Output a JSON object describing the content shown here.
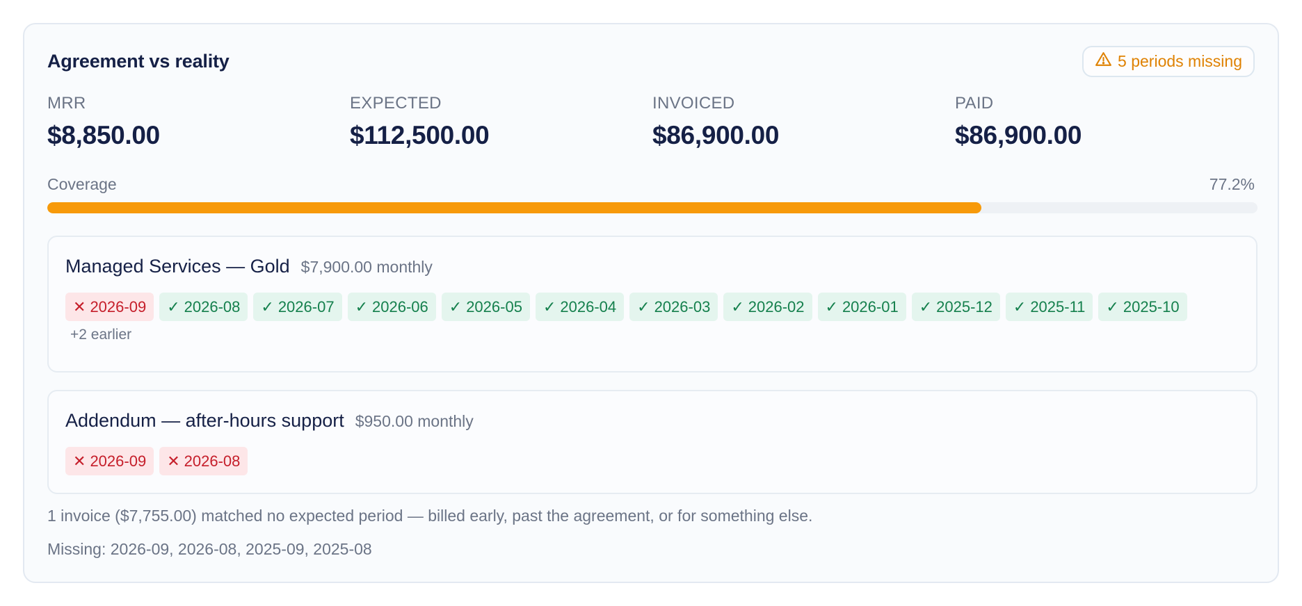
{
  "title": "Agreement vs reality",
  "warning": {
    "text": "5 periods missing",
    "icon": "warning-triangle-icon",
    "color": "#df8203"
  },
  "metrics": [
    {
      "label": "MRR",
      "value": "$8,850.00"
    },
    {
      "label": "EXPECTED",
      "value": "$112,500.00"
    },
    {
      "label": "INVOICED",
      "value": "$86,900.00"
    },
    {
      "label": "PAID",
      "value": "$86,900.00"
    }
  ],
  "coverage": {
    "label": "Coverage",
    "percent_text": "77.2%",
    "fraction": 0.772,
    "color": "#f79a0a"
  },
  "lines": [
    {
      "name": "Managed Services — Gold",
      "price": "$7,900.00 monthly",
      "periods": [
        {
          "period": "2026-09",
          "status": "missing"
        },
        {
          "period": "2026-08",
          "status": "ok"
        },
        {
          "period": "2026-07",
          "status": "ok"
        },
        {
          "period": "2026-06",
          "status": "ok"
        },
        {
          "period": "2026-05",
          "status": "ok"
        },
        {
          "period": "2026-04",
          "status": "ok"
        },
        {
          "period": "2026-03",
          "status": "ok"
        },
        {
          "period": "2026-02",
          "status": "ok"
        },
        {
          "period": "2026-01",
          "status": "ok"
        },
        {
          "period": "2025-12",
          "status": "ok"
        },
        {
          "period": "2025-11",
          "status": "ok"
        },
        {
          "period": "2025-10",
          "status": "ok"
        }
      ],
      "more": "+2 earlier"
    },
    {
      "name": "Addendum — after-hours support",
      "price": "$950.00 monthly",
      "periods": [
        {
          "period": "2026-09",
          "status": "missing"
        },
        {
          "period": "2026-08",
          "status": "missing"
        }
      ],
      "more": ""
    }
  ],
  "unmatched_note": "1 invoice ($7,755.00) matched no expected period — billed early, past the agreement, or for something else.",
  "missing_note": "Missing: 2026-09, 2026-08, 2025-09, 2025-08",
  "colors": {
    "ok_bg": "#e4f5ee",
    "ok_text": "#15804d",
    "miss_bg": "#fde6e8",
    "miss_text": "#c51e2a"
  }
}
